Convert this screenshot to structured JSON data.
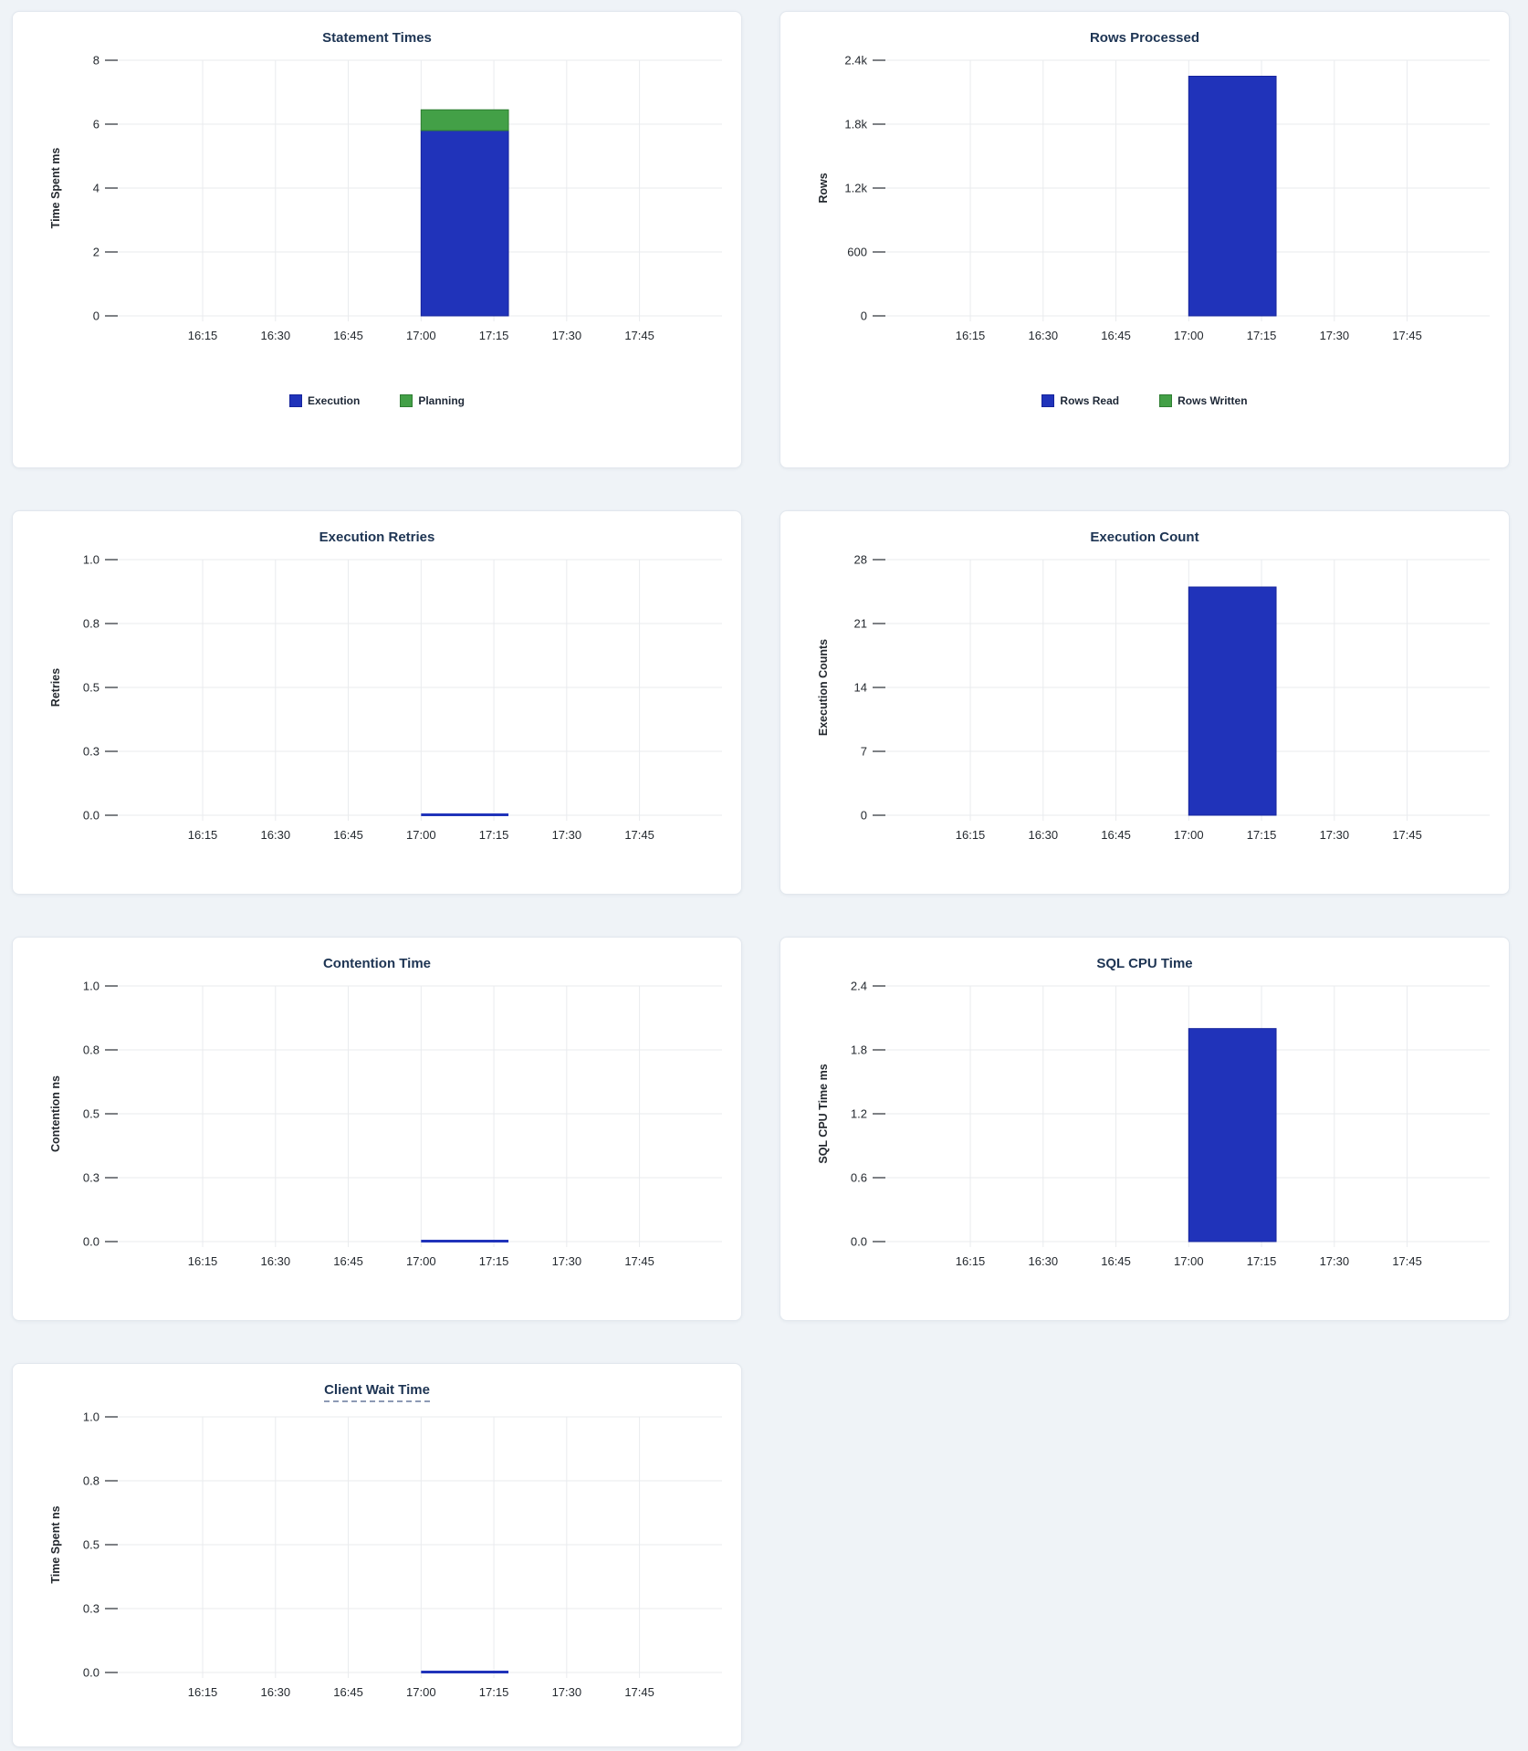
{
  "app": {
    "page_background": "#eff3f7",
    "card_background": "#ffffff",
    "card_border": "#e2e7ee"
  },
  "colors": {
    "bar_blue": "#2033ba",
    "bar_blue_stroke": "#16249c",
    "bar_green": "#43a047",
    "bar_green_stroke": "#2e7d32",
    "flat_line_blue": "#2033ba",
    "title_text": "#1d3453",
    "axis_text": "#24292f",
    "grid_line": "#e9ebee",
    "tick_stub": "#52575c",
    "title_underline": "#8d9ab5"
  },
  "time_axis": {
    "ticks": [
      "16:15",
      "16:30",
      "16:45",
      "17:00",
      "17:15",
      "17:30",
      "17:45"
    ],
    "domain_start": "15:56",
    "domain_end": "18:02"
  },
  "chart_data": [
    {
      "id": "statement-times",
      "type": "bar",
      "title": "Statement Times",
      "title_underlined": false,
      "ylabel": "Time Spent ms",
      "ymax": 8,
      "yticks": [
        {
          "value": 0,
          "label": "0"
        },
        {
          "value": 2,
          "label": "2"
        },
        {
          "value": 4,
          "label": "4"
        },
        {
          "value": 6,
          "label": "6"
        },
        {
          "value": 8,
          "label": "8"
        }
      ],
      "xticks": [
        "16:15",
        "16:30",
        "16:45",
        "17:00",
        "17:15",
        "17:30",
        "17:45"
      ],
      "window": {
        "start": "17:00",
        "end": "17:18"
      },
      "stacked": true,
      "series": [
        {
          "name": "Execution",
          "color_key": "blue",
          "value": 5.8
        },
        {
          "name": "Planning",
          "color_key": "green",
          "value": 0.65
        }
      ],
      "legend": [
        {
          "label": "Execution",
          "color_key": "blue"
        },
        {
          "label": "Planning",
          "color_key": "green"
        }
      ]
    },
    {
      "id": "rows-processed",
      "type": "bar",
      "title": "Rows Processed",
      "title_underlined": false,
      "ylabel": "Rows",
      "ymax": 2400,
      "yticks": [
        {
          "value": 0,
          "label": "0"
        },
        {
          "value": 600,
          "label": "600"
        },
        {
          "value": 1200,
          "label": "1.2k"
        },
        {
          "value": 1800,
          "label": "1.8k"
        },
        {
          "value": 2400,
          "label": "2.4k"
        }
      ],
      "xticks": [
        "16:15",
        "16:30",
        "16:45",
        "17:00",
        "17:15",
        "17:30",
        "17:45"
      ],
      "window": {
        "start": "17:00",
        "end": "17:18"
      },
      "stacked": true,
      "series": [
        {
          "name": "Rows Read",
          "color_key": "blue",
          "value": 2250
        },
        {
          "name": "Rows Written",
          "color_key": "green",
          "value": 0
        }
      ],
      "legend": [
        {
          "label": "Rows Read",
          "color_key": "blue"
        },
        {
          "label": "Rows Written",
          "color_key": "green"
        }
      ]
    },
    {
      "id": "execution-retries",
      "type": "line",
      "title": "Execution Retries",
      "title_underlined": false,
      "ylabel": "Retries",
      "ymax": 1,
      "yticks": [
        {
          "value": 0,
          "label": "0.0"
        },
        {
          "value": 0.25,
          "label": "0.3"
        },
        {
          "value": 0.5,
          "label": "0.5"
        },
        {
          "value": 0.75,
          "label": "0.8"
        },
        {
          "value": 1,
          "label": "1.0"
        }
      ],
      "xticks": [
        "16:15",
        "16:30",
        "16:45",
        "17:00",
        "17:15",
        "17:30",
        "17:45"
      ],
      "window": {
        "start": "17:00",
        "end": "17:18"
      },
      "series": [
        {
          "name": "Retries",
          "color_key": "blue",
          "value": 0
        }
      ],
      "legend": null
    },
    {
      "id": "execution-count",
      "type": "bar",
      "title": "Execution Count",
      "title_underlined": false,
      "ylabel": "Execution Counts",
      "ymax": 28,
      "yticks": [
        {
          "value": 0,
          "label": "0"
        },
        {
          "value": 7,
          "label": "7"
        },
        {
          "value": 14,
          "label": "14"
        },
        {
          "value": 21,
          "label": "21"
        },
        {
          "value": 28,
          "label": "28"
        }
      ],
      "xticks": [
        "16:15",
        "16:30",
        "16:45",
        "17:00",
        "17:15",
        "17:30",
        "17:45"
      ],
      "window": {
        "start": "17:00",
        "end": "17:18"
      },
      "stacked": false,
      "series": [
        {
          "name": "Execution Count",
          "color_key": "blue",
          "value": 25
        }
      ],
      "legend": null
    },
    {
      "id": "contention-time",
      "type": "line",
      "title": "Contention Time",
      "title_underlined": false,
      "ylabel": "Contention ns",
      "ymax": 1,
      "yticks": [
        {
          "value": 0,
          "label": "0.0"
        },
        {
          "value": 0.25,
          "label": "0.3"
        },
        {
          "value": 0.5,
          "label": "0.5"
        },
        {
          "value": 0.75,
          "label": "0.8"
        },
        {
          "value": 1,
          "label": "1.0"
        }
      ],
      "xticks": [
        "16:15",
        "16:30",
        "16:45",
        "17:00",
        "17:15",
        "17:30",
        "17:45"
      ],
      "window": {
        "start": "17:00",
        "end": "17:18"
      },
      "series": [
        {
          "name": "Contention",
          "color_key": "blue",
          "value": 0
        }
      ],
      "legend": null
    },
    {
      "id": "sql-cpu-time",
      "type": "bar",
      "title": "SQL CPU Time",
      "title_underlined": false,
      "ylabel": "SQL CPU Time ms",
      "ymax": 2.4,
      "yticks": [
        {
          "value": 0,
          "label": "0.0"
        },
        {
          "value": 0.6,
          "label": "0.6"
        },
        {
          "value": 1.2,
          "label": "1.2"
        },
        {
          "value": 1.8,
          "label": "1.8"
        },
        {
          "value": 2.4,
          "label": "2.4"
        }
      ],
      "xticks": [
        "16:15",
        "16:30",
        "16:45",
        "17:00",
        "17:15",
        "17:30",
        "17:45"
      ],
      "window": {
        "start": "17:00",
        "end": "17:18"
      },
      "stacked": false,
      "series": [
        {
          "name": "SQL CPU Time",
          "color_key": "blue",
          "value": 2.0
        }
      ],
      "legend": null
    },
    {
      "id": "client-wait-time",
      "type": "line",
      "title": "Client Wait Time",
      "title_underlined": true,
      "ylabel": "Time Spent ns",
      "ymax": 1,
      "yticks": [
        {
          "value": 0,
          "label": "0.0"
        },
        {
          "value": 0.25,
          "label": "0.3"
        },
        {
          "value": 0.5,
          "label": "0.5"
        },
        {
          "value": 0.75,
          "label": "0.8"
        },
        {
          "value": 1,
          "label": "1.0"
        }
      ],
      "xticks": [
        "16:15",
        "16:30",
        "16:45",
        "17:00",
        "17:15",
        "17:30",
        "17:45"
      ],
      "window": {
        "start": "17:00",
        "end": "17:18"
      },
      "series": [
        {
          "name": "Client Wait",
          "color_key": "blue",
          "value": 0
        }
      ],
      "legend": null
    }
  ]
}
